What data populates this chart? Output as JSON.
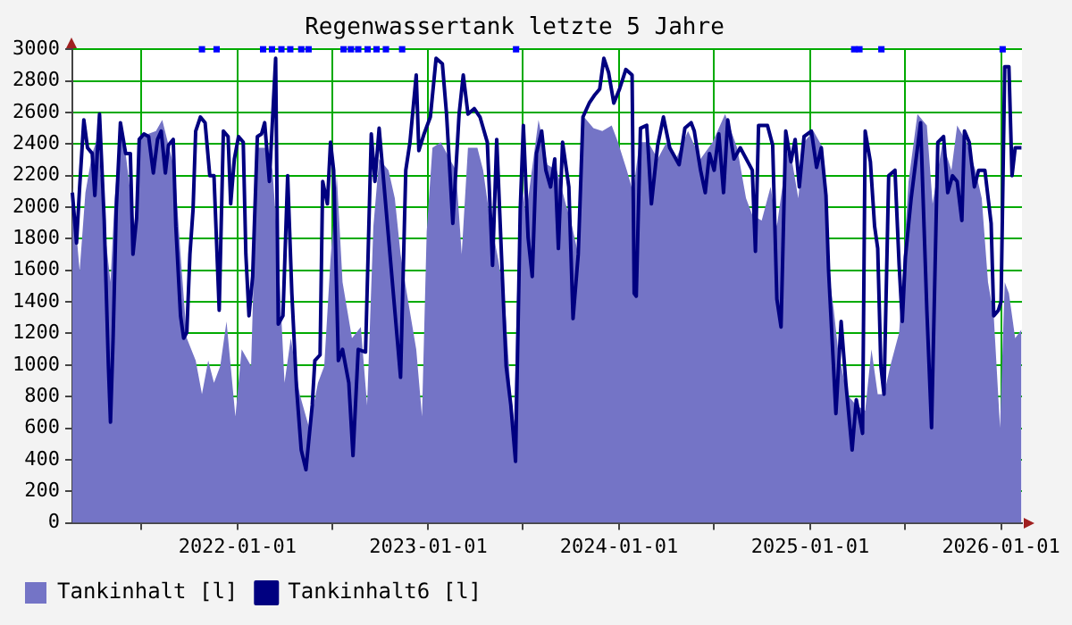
{
  "chart_data": {
    "type": "area",
    "title": "Regenwassertank letzte 5 Jahre",
    "xlim": [
      "2021-02-19",
      "2026-02-10"
    ],
    "xticks": [
      {
        "value": "2021-07-01",
        "label": null
      },
      "2022-01-01",
      {
        "value": "2022-07-01",
        "label": null
      },
      "2023-01-01",
      {
        "value": "2023-07-01",
        "label": null
      },
      "2024-01-01",
      {
        "value": "2024-07-01",
        "label": null
      },
      "2025-01-01",
      {
        "value": "2025-07-01",
        "label": null
      },
      "2026-01-01"
    ],
    "ylim": [
      0,
      3000
    ],
    "yticks": [
      0,
      200,
      400,
      600,
      800,
      1000,
      1200,
      1400,
      1600,
      1800,
      2000,
      2200,
      2400,
      2600,
      2800,
      3000
    ],
    "grid": true,
    "legend": "bottom",
    "series": [
      {
        "name": "Tankinhalt [l]",
        "color": "#7474c6",
        "x": [
          "2021-02-19",
          "2021-03-05",
          "2021-03-16",
          "2021-03-29",
          "2021-04-09",
          "2021-04-21",
          "2021-05-03",
          "2021-05-11",
          "2021-05-22",
          "2021-06-01",
          "2021-06-18",
          "2021-06-30",
          "2021-07-29",
          "2021-08-10",
          "2021-09-03",
          "2021-09-14",
          "2021-09-26",
          "2021-10-13",
          "2021-10-25",
          "2021-11-06",
          "2021-11-17",
          "2021-11-29",
          "2021-12-11",
          "2021-12-28",
          "2022-01-09",
          "2022-01-27",
          "2022-02-08",
          "2022-02-25",
          "2022-03-09",
          "2022-03-20",
          "2022-04-01",
          "2022-04-13",
          "2022-04-30",
          "2022-05-18",
          "2022-06-04",
          "2022-06-16",
          "2022-06-28",
          "2022-07-10",
          "2022-07-21",
          "2022-08-08",
          "2022-08-25",
          "2022-09-06",
          "2022-09-18",
          "2022-09-29",
          "2022-10-17",
          "2022-10-29",
          "2022-11-09",
          "2022-11-21",
          "2022-12-09",
          "2022-12-20",
          "2022-12-29",
          "2023-01-09",
          "2023-01-25",
          "2023-02-11",
          "2023-02-23",
          "2023-03-06",
          "2023-03-18",
          "2023-04-05",
          "2023-04-16",
          "2023-04-28",
          "2023-05-15",
          "2023-05-27",
          "2023-06-08",
          "2023-06-14",
          "2023-06-26",
          "2023-07-07",
          "2023-07-31",
          "2023-08-17",
          "2023-09-04",
          "2023-09-21",
          "2023-10-03",
          "2023-10-15",
          "2023-10-26",
          "2023-11-13",
          "2023-11-30",
          "2023-12-18",
          "2023-12-30",
          "2024-01-16",
          "2024-01-28",
          "2024-02-09",
          "2024-02-26",
          "2024-03-15",
          "2024-04-01",
          "2024-04-19",
          "2024-05-12",
          "2024-06-05",
          "2024-06-28",
          "2024-07-22",
          "2024-08-14",
          "2024-08-31",
          "2024-09-12",
          "2024-09-30",
          "2024-10-17",
          "2024-10-29",
          "2024-11-10",
          "2024-11-21",
          "2024-12-09",
          "2024-12-20",
          "2025-01-07",
          "2025-01-25",
          "2025-02-05",
          "2025-02-15",
          "2025-02-23",
          "2025-03-12",
          "2025-03-30",
          "2025-04-16",
          "2025-04-28",
          "2025-05-10",
          "2025-05-22",
          "2025-06-03",
          "2025-06-20",
          "2025-07-08",
          "2025-07-25",
          "2025-08-12",
          "2025-08-23",
          "2025-09-11",
          "2025-09-28",
          "2025-10-09",
          "2025-10-27",
          "2025-11-13",
          "2025-11-25",
          "2025-12-07",
          "2025-12-18",
          "2025-12-30",
          "2026-01-08",
          "2026-01-16",
          "2026-01-28",
          "2026-02-09"
        ],
        "values": [
          2128,
          1596,
          2092,
          2340,
          2447,
          1879,
          1525,
          2057,
          2482,
          2340,
          1879,
          2447,
          2482,
          2553,
          2234,
          1702,
          1170,
          1028,
          815,
          1028,
          887,
          993,
          1276,
          674,
          1099,
          993,
          2376,
          2376,
          2234,
          1702,
          887,
          1170,
          815,
          603,
          887,
          993,
          1667,
          2199,
          1525,
          1170,
          1241,
          745,
          1879,
          2305,
          2234,
          2057,
          1702,
          1454,
          1099,
          674,
          1844,
          2376,
          2411,
          2305,
          2234,
          1702,
          2376,
          2376,
          2234,
          1950,
          1667,
          1418,
          815,
          638,
          2234,
          1950,
          2553,
          2269,
          2234,
          2021,
          1879,
          1702,
          2571,
          2500,
          2482,
          2518,
          2411,
          2234,
          2092,
          2411,
          2411,
          2305,
          2411,
          2305,
          2482,
          2305,
          2411,
          2589,
          2376,
          2057,
          1950,
          1915,
          2128,
          1879,
          2163,
          2411,
          2057,
          2411,
          2482,
          2376,
          1596,
          1347,
          1099,
          815,
          745,
          710,
          1099,
          815,
          815,
          993,
          1206,
          2163,
          2589,
          2518,
          2021,
          2411,
          2234,
          2518,
          2411,
          2234,
          2057,
          1525,
          1312,
          603,
          1525,
          1454,
          1170,
          1223
        ]
      },
      {
        "name": "Tankinhalt6 [l]",
        "type": "line",
        "color": "#000080",
        "x": [
          "2021-02-19",
          "2021-02-27",
          "2021-03-05",
          "2021-03-13",
          "2021-03-20",
          "2021-03-29",
          "2021-04-03",
          "2021-04-12",
          "2021-04-21",
          "2021-04-29",
          "2021-05-03",
          "2021-05-08",
          "2021-05-14",
          "2021-05-22",
          "2021-06-01",
          "2021-06-10",
          "2021-06-15",
          "2021-06-22",
          "2021-06-27",
          "2021-07-06",
          "2021-07-15",
          "2021-07-24",
          "2021-08-01",
          "2021-08-08",
          "2021-08-16",
          "2021-08-22",
          "2021-08-31",
          "2021-09-05",
          "2021-09-14",
          "2021-09-20",
          "2021-09-26",
          "2021-10-02",
          "2021-10-08",
          "2021-10-13",
          "2021-10-22",
          "2021-10-31",
          "2021-11-09",
          "2021-11-17",
          "2021-11-27",
          "2021-12-05",
          "2021-12-14",
          "2021-12-19",
          "2021-12-26",
          "2022-01-03",
          "2022-01-12",
          "2022-01-17",
          "2022-01-23",
          "2022-01-30",
          "2022-02-08",
          "2022-02-16",
          "2022-02-22",
          "2022-03-03",
          "2022-03-15",
          "2022-03-20",
          "2022-03-29",
          "2022-04-07",
          "2022-04-15",
          "2022-04-24",
          "2022-05-03",
          "2022-05-12",
          "2022-05-24",
          "2022-05-29",
          "2022-06-08",
          "2022-06-13",
          "2022-06-22",
          "2022-06-28",
          "2022-07-04",
          "2022-07-13",
          "2022-07-21",
          "2022-08-02",
          "2022-08-10",
          "2022-08-20",
          "2022-09-03",
          "2022-09-14",
          "2022-09-21",
          "2022-09-29",
          "2022-11-09",
          "2022-11-19",
          "2022-11-27",
          "2022-12-09",
          "2022-12-14",
          "2022-12-24",
          "2023-01-05",
          "2023-01-16",
          "2023-01-28",
          "2023-02-05",
          "2023-02-17",
          "2023-03-01",
          "2023-03-09",
          "2023-03-18",
          "2023-03-30",
          "2023-04-10",
          "2023-04-24",
          "2023-05-04",
          "2023-05-12",
          "2023-05-21",
          "2023-05-30",
          "2023-06-08",
          "2023-06-17",
          "2023-06-26",
          "2023-07-02",
          "2023-07-11",
          "2023-07-19",
          "2023-07-27",
          "2023-08-06",
          "2023-08-14",
          "2023-08-23",
          "2023-08-31",
          "2023-09-07",
          "2023-09-15",
          "2023-09-27",
          "2023-10-05",
          "2023-10-15",
          "2023-10-24",
          "2023-11-05",
          "2023-11-16",
          "2023-11-25",
          "2023-12-03",
          "2023-12-12",
          "2023-12-22",
          "2024-01-02",
          "2024-01-14",
          "2024-01-26",
          "2024-01-30",
          "2024-02-03",
          "2024-02-11",
          "2024-02-23",
          "2024-03-03",
          "2024-03-15",
          "2024-03-26",
          "2024-04-07",
          "2024-04-25",
          "2024-05-06",
          "2024-05-18",
          "2024-05-24",
          "2024-06-05",
          "2024-06-14",
          "2024-06-22",
          "2024-07-01",
          "2024-07-10",
          "2024-07-19",
          "2024-07-27",
          "2024-08-08",
          "2024-08-20",
          "2024-09-12",
          "2024-09-18",
          "2024-09-24",
          "2024-10-11",
          "2024-10-21",
          "2024-10-29",
          "2024-11-06",
          "2024-11-15",
          "2024-11-25",
          "2024-12-03",
          "2024-12-11",
          "2024-12-20",
          "2025-01-03",
          "2025-01-13",
          "2025-01-22",
          "2025-01-31",
          "2025-02-05",
          "2025-02-19",
          "2025-03-01",
          "2025-03-10",
          "2025-03-22",
          "2025-03-30",
          "2025-04-11",
          "2025-04-16",
          "2025-04-26",
          "2025-05-04",
          "2025-05-10",
          "2025-05-16",
          "2025-05-22",
          "2025-05-31",
          "2025-06-12",
          "2025-06-20",
          "2025-06-26",
          "2025-07-02",
          "2025-07-13",
          "2025-07-31",
          "2025-08-12",
          "2025-08-21",
          "2025-09-02",
          "2025-09-13",
          "2025-09-21",
          "2025-09-30",
          "2025-10-09",
          "2025-10-18",
          "2025-10-23",
          "2025-11-01",
          "2025-11-11",
          "2025-11-19",
          "2025-12-01",
          "2025-12-13",
          "2025-12-18",
          "2025-12-27",
          "2026-01-01",
          "2026-01-08",
          "2026-01-16",
          "2026-01-22",
          "2026-01-28",
          "2026-02-09"
        ],
        "values": [
          2092,
          1773,
          2128,
          2553,
          2376,
          2340,
          2074,
          2589,
          1915,
          993,
          638,
          1170,
          1986,
          2535,
          2340,
          2340,
          1702,
          1932,
          2429,
          2464,
          2447,
          2216,
          2429,
          2482,
          2216,
          2393,
          2429,
          1879,
          1312,
          1170,
          1206,
          1702,
          1986,
          2482,
          2571,
          2535,
          2199,
          2199,
          1347,
          2482,
          2447,
          2021,
          2305,
          2447,
          2411,
          1702,
          1312,
          1560,
          2447,
          2464,
          2535,
          2163,
          2943,
          1259,
          1312,
          2199,
          1454,
          851,
          461,
          337,
          745,
          1028,
          1064,
          2163,
          2021,
          2411,
          2234,
          1028,
          1099,
          887,
          426,
          1099,
          1082,
          2464,
          2163,
          2500,
          922,
          2234,
          2411,
          2837,
          2358,
          2464,
          2571,
          2943,
          2908,
          2589,
          1897,
          2589,
          2837,
          2589,
          2624,
          2571,
          2411,
          1631,
          2429,
          1702,
          993,
          745,
          390,
          1986,
          2518,
          1809,
          1560,
          2340,
          2482,
          2234,
          2128,
          2305,
          1738,
          2411,
          2128,
          1294,
          1702,
          2571,
          2659,
          2713,
          2748,
          2943,
          2854,
          2659,
          2748,
          2872,
          2837,
          1454,
          1436,
          2500,
          2518,
          2021,
          2393,
          2571,
          2376,
          2269,
          2500,
          2535,
          2482,
          2234,
          2092,
          2340,
          2234,
          2464,
          2092,
          2553,
          2305,
          2376,
          2234,
          1720,
          2518,
          2518,
          2393,
          1418,
          1241,
          2482,
          2287,
          2429,
          2128,
          2447,
          2482,
          2252,
          2376,
          2074,
          1596,
          692,
          1276,
          887,
          461,
          780,
          567,
          2482,
          2287,
          1879,
          1738,
          993,
          815,
          2199,
          2234,
          1631,
          1276,
          1685,
          2057,
          2535,
          1347,
          603,
          2411,
          2447,
          2092,
          2199,
          2163,
          1915,
          2482,
          2411,
          2128,
          2234,
          2234,
          1897,
          1312,
          1347,
          1401,
          2890,
          2890,
          2199,
          2376,
          2376
        ]
      },
      {
        "type": "scatter",
        "marker": "square",
        "color": "#0000ff",
        "x": [
          "2021-10-25",
          "2021-11-22",
          "2022-02-19",
          "2022-03-08",
          "2022-03-26",
          "2022-04-12",
          "2022-05-03",
          "2022-05-17",
          "2022-07-23",
          "2022-08-06",
          "2022-08-20",
          "2022-09-07",
          "2022-09-24",
          "2022-10-12",
          "2022-11-12",
          "2023-06-18",
          "2025-03-26",
          "2025-04-05",
          "2025-05-17",
          "2026-01-04"
        ],
        "values": [
          3000,
          3000,
          3000,
          3000,
          3000,
          3000,
          3000,
          3000,
          3000,
          3000,
          3000,
          3000,
          3000,
          3000,
          3000,
          3000,
          3000,
          3000,
          3000,
          3000
        ]
      }
    ]
  }
}
